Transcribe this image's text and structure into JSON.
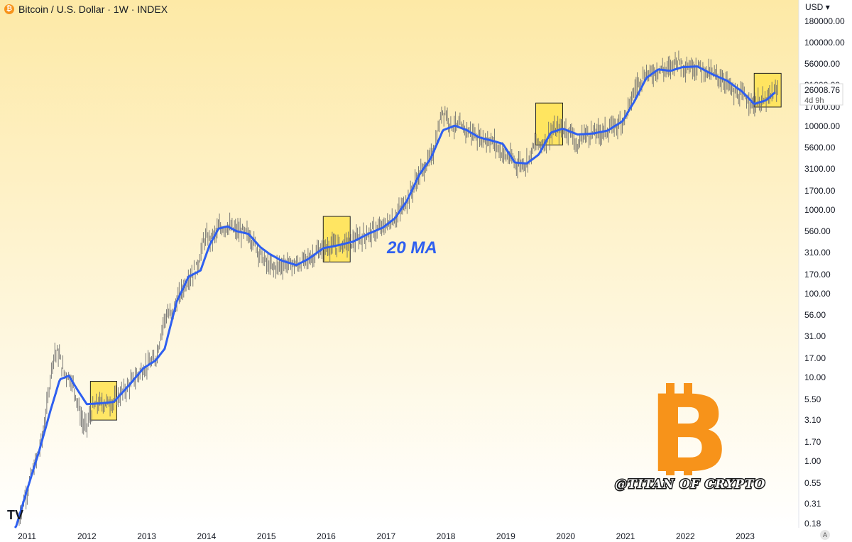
{
  "header": {
    "symbol_icon": "bitcoin-coin-icon",
    "title": "Bitcoin / U.S. Dollar · 1W · INDEX"
  },
  "unit_menu": "USD",
  "auto_scale": "A",
  "platform_logo": "TV",
  "watermark": {
    "handle": "@TITAN OF CRYPTO",
    "symbol": "B",
    "color": "#f7931a"
  },
  "colors": {
    "ma": "#2e5ff0",
    "candles": "#777777",
    "highlight": "#ffe357",
    "bg_top": "#fde9a6",
    "bg_bottom": "#ffffff"
  },
  "chart_data": {
    "type": "line",
    "yscale": "log",
    "ylim": [
      0.15,
      300000
    ],
    "xlim": [
      2010.7,
      2024.2
    ],
    "y_ticks": [
      "180000.00",
      "100000.00",
      "56000.00",
      "31000.00",
      "17000.00",
      "10000.00",
      "5600.00",
      "3100.00",
      "1700.00",
      "1000.00",
      "560.00",
      "310.00",
      "170.00",
      "100.00",
      "56.00",
      "31.00",
      "17.00",
      "10.00",
      "5.50",
      "3.10",
      "1.70",
      "1.00",
      "0.55",
      "0.31",
      "0.18"
    ],
    "x_ticks": [
      "2011",
      "2012",
      "2013",
      "2014",
      "2015",
      "2016",
      "2017",
      "2018",
      "2019",
      "2020",
      "2021",
      "2022",
      "2023"
    ],
    "series": [
      {
        "name": "20 MA",
        "x": [
          2010.8,
          2011.0,
          2011.2,
          2011.4,
          2011.55,
          2011.7,
          2011.85,
          2012.0,
          2012.2,
          2012.45,
          2012.7,
          2012.95,
          2013.15,
          2013.3,
          2013.5,
          2013.7,
          2013.9,
          2014.05,
          2014.2,
          2014.35,
          2014.5,
          2014.7,
          2014.9,
          2015.05,
          2015.25,
          2015.5,
          2015.7,
          2015.95,
          2016.2,
          2016.45,
          2016.7,
          2016.95,
          2017.15,
          2017.35,
          2017.55,
          2017.75,
          2017.95,
          2018.15,
          2018.35,
          2018.55,
          2018.75,
          2018.95,
          2019.15,
          2019.35,
          2019.55,
          2019.75,
          2019.95,
          2020.2,
          2020.45,
          2020.7,
          2020.95,
          2021.15,
          2021.35,
          2021.55,
          2021.75,
          2021.95,
          2022.2,
          2022.45,
          2022.7,
          2022.95,
          2023.15,
          2023.35,
          2023.5
        ],
        "values": [
          0.15,
          0.45,
          1.3,
          4.2,
          9.5,
          10.5,
          7,
          4.8,
          4.9,
          5.1,
          8,
          13,
          16,
          22,
          80,
          160,
          190,
          380,
          600,
          640,
          560,
          520,
          360,
          300,
          250,
          220,
          260,
          350,
          380,
          420,
          520,
          620,
          800,
          1300,
          2600,
          4200,
          9000,
          10200,
          9000,
          7400,
          6800,
          6200,
          3700,
          3600,
          4600,
          8400,
          9400,
          8000,
          8200,
          8900,
          11500,
          20000,
          38000,
          48000,
          46000,
          51000,
          52000,
          42000,
          35000,
          26000,
          18500,
          20500,
          25500
        ]
      }
    ],
    "highlight_boxes": [
      {
        "x": [
          2012.06,
          2012.5
        ],
        "y": [
          3.1,
          9
        ]
      },
      {
        "x": [
          2015.95,
          2016.4
        ],
        "y": [
          240,
          840
        ]
      },
      {
        "x": [
          2019.5,
          2019.95
        ],
        "y": [
          6000,
          19000
        ]
      },
      {
        "x": [
          2023.15,
          2023.6
        ],
        "y": [
          17000,
          43000
        ]
      }
    ],
    "last_value": "26008.76",
    "countdown": "4d 9h",
    "annotation": "20 MA",
    "legend": "none",
    "grid": false
  }
}
